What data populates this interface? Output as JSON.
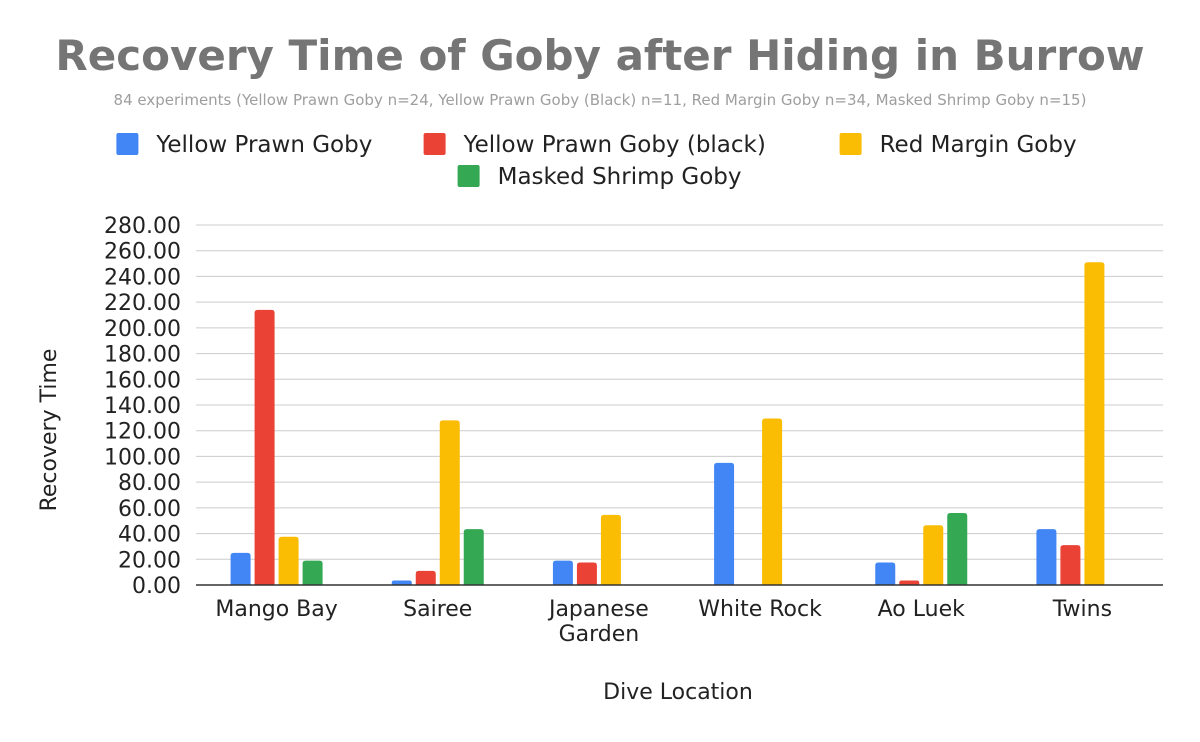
{
  "chart_data": {
    "type": "bar",
    "title": "Recovery Time of Goby after Hiding in Burrow",
    "subtitle": "84 experiments (Yellow Prawn Goby n=24, Yellow Prawn Goby (Black) n=11, Red Margin Goby n=34, Masked Shrimp Goby n=15)",
    "xlabel": "Dive Location",
    "ylabel": "Recovery Time",
    "ylim": [
      0,
      280
    ],
    "ytick_step": 20,
    "ytick_labels": [
      "0.00",
      "20.00",
      "40.00",
      "60.00",
      "80.00",
      "100.00",
      "120.00",
      "140.00",
      "160.00",
      "180.00",
      "200.00",
      "220.00",
      "240.00",
      "260.00",
      "280.00"
    ],
    "grid": true,
    "legend_position": "top",
    "categories": [
      [
        "Mango Bay"
      ],
      [
        "Sairee"
      ],
      [
        "Japanese",
        "Garden"
      ],
      [
        "White Rock"
      ],
      [
        "Ao Luek"
      ],
      [
        "Twins"
      ]
    ],
    "series": [
      {
        "name": "Yellow Prawn Goby",
        "color": "#4285f4",
        "values": [
          25,
          3.5,
          19,
          95,
          17.5,
          43.5
        ]
      },
      {
        "name": "Yellow Prawn Goby (black)",
        "color": "#ea4335",
        "values": [
          214,
          11,
          17.5,
          null,
          3.5,
          31
        ]
      },
      {
        "name": "Red Margin Goby",
        "color": "#fbbc04",
        "values": [
          37.5,
          128,
          54.5,
          129.5,
          46.5,
          251
        ]
      },
      {
        "name": "Masked Shrimp Goby",
        "color": "#34a853",
        "values": [
          19,
          43.5,
          null,
          null,
          56,
          null
        ]
      }
    ]
  }
}
